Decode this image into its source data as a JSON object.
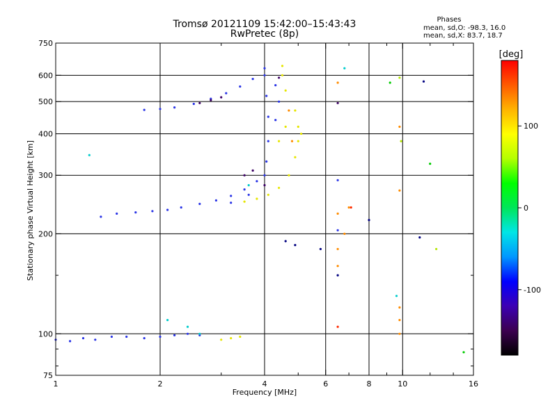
{
  "chart_data": {
    "type": "scatter",
    "title": "Tromsø 20121109 15:42:00–15:43:43",
    "subtitle": "RwPretec (8p)",
    "xlabel": "Frequency [MHz]",
    "ylabel": "Stationary phase Virtual Height [km]",
    "x_scale": "log",
    "y_scale": "log",
    "xlim": [
      1,
      16
    ],
    "ylim": [
      75,
      750
    ],
    "x_ticks": [
      1,
      2,
      4,
      6,
      8,
      10,
      16
    ],
    "x_minor_ticks": [
      3,
      5,
      7,
      9,
      12,
      14
    ],
    "y_ticks": [
      75,
      100,
      200,
      300,
      400,
      500,
      600,
      750
    ],
    "y_minor_ticks": [
      80,
      90,
      150
    ],
    "grid": true,
    "phases": {
      "title": "Phases",
      "line_o": "mean, sd,O: -98.3, 16.0",
      "line_x": "mean, sd,X:  83.7, 18.7"
    },
    "colorbar": {
      "label": "[deg]",
      "range": [
        -180,
        180
      ],
      "ticks": [
        100,
        0,
        -100
      ],
      "colors": [
        "#000000",
        "#3c0050",
        "#3c00b4",
        "#0000ff",
        "#0096ff",
        "#00e6e6",
        "#00e65a",
        "#00ff00",
        "#b4ff00",
        "#ffff00",
        "#ffb400",
        "#ff5a00",
        "#ff0000"
      ]
    },
    "series": [
      {
        "color": "#2a35e6",
        "points": [
          [
            1.0,
            96
          ],
          [
            1.1,
            95
          ],
          [
            1.2,
            97
          ],
          [
            1.3,
            96
          ],
          [
            1.45,
            98
          ],
          [
            1.6,
            98
          ],
          [
            1.8,
            97
          ],
          [
            2.0,
            98
          ],
          [
            2.2,
            99
          ],
          [
            2.4,
            100
          ],
          [
            2.6,
            99
          ],
          [
            1.5,
            230
          ],
          [
            1.7,
            232
          ],
          [
            1.9,
            234
          ],
          [
            2.1,
            236
          ],
          [
            2.3,
            240
          ],
          [
            2.6,
            246
          ],
          [
            2.9,
            252
          ],
          [
            3.2,
            260
          ],
          [
            3.5,
            272
          ],
          [
            3.8,
            288
          ],
          [
            4.0,
            300
          ],
          [
            4.05,
            330
          ],
          [
            4.1,
            380
          ],
          [
            4.1,
            450
          ],
          [
            4.05,
            520
          ],
          [
            4.0,
            600
          ],
          [
            1.8,
            472
          ],
          [
            2.0,
            475
          ],
          [
            2.2,
            480
          ],
          [
            2.5,
            492
          ],
          [
            2.8,
            510
          ],
          [
            3.1,
            530
          ],
          [
            3.4,
            555
          ],
          [
            3.7,
            585
          ],
          [
            4.0,
            630
          ],
          [
            4.3,
            560
          ],
          [
            4.4,
            500
          ],
          [
            4.3,
            440
          ],
          [
            1.35,
            225
          ],
          [
            3.2,
            248
          ],
          [
            3.6,
            262
          ],
          [
            6.5,
            290
          ],
          [
            6.5,
            205
          ]
        ]
      },
      {
        "color": "#3c0064",
        "points": [
          [
            2.6,
            495
          ],
          [
            2.8,
            505
          ],
          [
            3.0,
            515
          ],
          [
            3.5,
            300
          ],
          [
            3.7,
            310
          ],
          [
            4.0,
            280
          ],
          [
            4.4,
            590
          ],
          [
            6.5,
            495
          ]
        ]
      },
      {
        "color": "#e6e600",
        "points": [
          [
            3.0,
            96
          ],
          [
            3.2,
            97
          ],
          [
            3.4,
            98
          ],
          [
            3.5,
            250
          ],
          [
            3.8,
            255
          ],
          [
            4.1,
            262
          ],
          [
            4.4,
            275
          ],
          [
            4.7,
            300
          ],
          [
            4.9,
            340
          ],
          [
            5.0,
            380
          ],
          [
            5.0,
            420
          ],
          [
            4.9,
            470
          ],
          [
            4.6,
            540
          ],
          [
            4.5,
            600
          ],
          [
            4.4,
            380
          ],
          [
            4.6,
            420
          ],
          [
            4.5,
            640
          ],
          [
            5.1,
            400
          ]
        ]
      },
      {
        "color": "#00cccc",
        "points": [
          [
            2.1,
            110
          ],
          [
            2.4,
            105
          ],
          [
            2.6,
            100
          ],
          [
            3.6,
            280
          ],
          [
            6.8,
            630
          ],
          [
            1.25,
            345
          ],
          [
            9.6,
            130
          ]
        ]
      },
      {
        "color": "#ff8c00",
        "points": [
          [
            6.5,
            570
          ],
          [
            6.5,
            230
          ],
          [
            6.5,
            180
          ],
          [
            6.5,
            160
          ],
          [
            7.0,
            240
          ],
          [
            9.8,
            120
          ],
          [
            9.8,
            110
          ],
          [
            9.8,
            100
          ],
          [
            9.8,
            420
          ],
          [
            9.8,
            270
          ],
          [
            6.8,
            200
          ],
          [
            4.7,
            470
          ],
          [
            4.8,
            380
          ]
        ]
      },
      {
        "color": "#ff2a00",
        "points": [
          [
            7.1,
            240
          ],
          [
            6.5,
            105
          ]
        ]
      },
      {
        "color": "#00cc00",
        "points": [
          [
            9.2,
            570
          ],
          [
            12,
            325
          ],
          [
            15,
            88
          ]
        ]
      },
      {
        "color": "#b4e600",
        "points": [
          [
            9.8,
            590
          ],
          [
            9.9,
            380
          ],
          [
            12.5,
            180
          ]
        ]
      },
      {
        "color": "#000080",
        "points": [
          [
            4.6,
            190
          ],
          [
            4.9,
            185
          ],
          [
            5.8,
            180
          ],
          [
            6.5,
            150
          ],
          [
            11.2,
            195
          ],
          [
            11.5,
            575
          ],
          [
            8.0,
            220
          ]
        ]
      }
    ]
  }
}
